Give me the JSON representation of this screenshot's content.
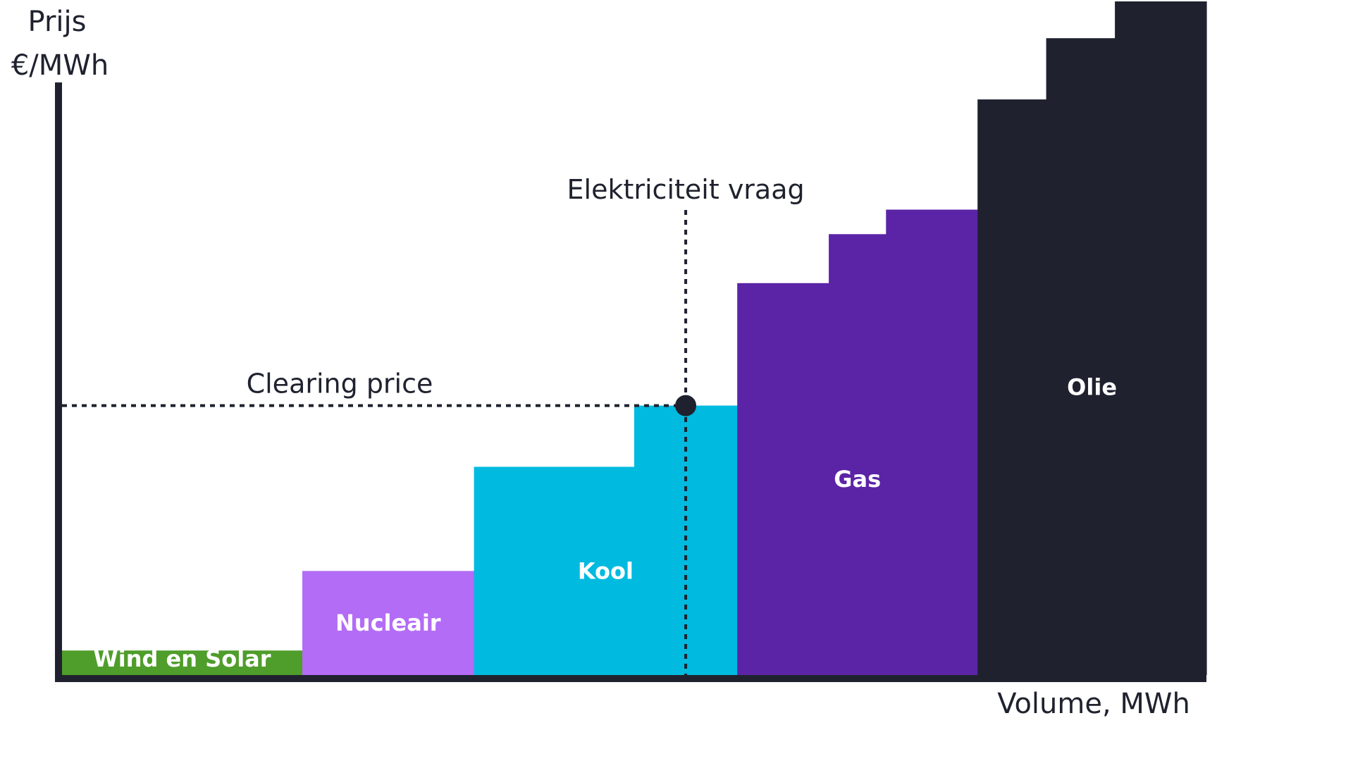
{
  "chart_data": {
    "type": "bar",
    "subtype": "merit-order step chart",
    "y_axis_label_line1": "Prijs",
    "y_axis_label_line2": "€/MWh",
    "x_axis_label": "Volume, MWh",
    "ylim": [
      0,
      100
    ],
    "xlim": [
      0,
      100
    ],
    "grid": false,
    "legend": "none",
    "segments": [
      {
        "name": "Wind en Solar",
        "color": "#4f9d2b",
        "steps": [
          {
            "x_start": 0,
            "x_end": 21,
            "value": 4
          }
        ]
      },
      {
        "name": "Nucleair",
        "color": "#b36cf6",
        "steps": [
          {
            "x_start": 21,
            "x_end": 36,
            "value": 17
          }
        ]
      },
      {
        "name": "Kool",
        "color": "#00badf",
        "steps": [
          {
            "x_start": 36,
            "x_end": 50,
            "value": 34
          },
          {
            "x_start": 50,
            "x_end": 59,
            "value": 44
          }
        ]
      },
      {
        "name": "Gas",
        "color": "#5b24a6",
        "steps": [
          {
            "x_start": 59,
            "x_end": 67,
            "value": 64
          },
          {
            "x_start": 67,
            "x_end": 72,
            "value": 72
          },
          {
            "x_start": 72,
            "x_end": 80,
            "value": 76
          }
        ]
      },
      {
        "name": "Olie",
        "color": "#1f222e",
        "steps": [
          {
            "x_start": 80,
            "x_end": 86,
            "value": 94
          },
          {
            "x_start": 86,
            "x_end": 92,
            "value": 104
          },
          {
            "x_start": 92,
            "x_end": 100,
            "value": 110
          }
        ]
      }
    ],
    "annotations": {
      "demand_label": "Elektriciteit vraag",
      "demand_x": 54.5,
      "clearing_label": "Clearing price",
      "clearing_price": 44
    }
  },
  "colors": {
    "axis": "#1f222e",
    "dotted_line": "#1f222e",
    "label_text": "#ffffff"
  }
}
